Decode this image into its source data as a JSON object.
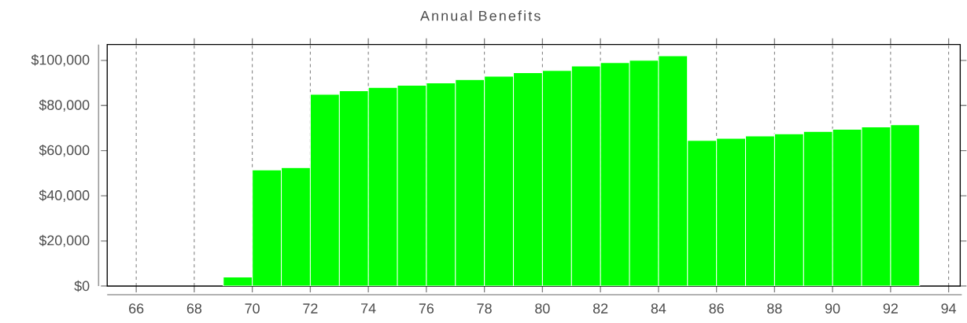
{
  "chart_data": {
    "type": "histogram",
    "title": "Annual Benefits",
    "bins": [
      69,
      70,
      71,
      72,
      73,
      74,
      75,
      76,
      77,
      78,
      79,
      80,
      81,
      82,
      83,
      84,
      85,
      86,
      87,
      88,
      89,
      90,
      91,
      92,
      93
    ],
    "values": [
      4000,
      51500,
      52500,
      85000,
      86500,
      88000,
      89000,
      90000,
      91500,
      93000,
      94500,
      95500,
      97500,
      99000,
      100000,
      102000,
      64500,
      65500,
      66500,
      67500,
      68500,
      69500,
      70500,
      71500
    ],
    "color": "#00ff00",
    "xlim": [
      65,
      94.4
    ],
    "xticks": [
      66,
      68,
      70,
      72,
      74,
      76,
      78,
      80,
      82,
      84,
      86,
      88,
      90,
      92,
      94
    ],
    "ylim": [
      0,
      107000
    ],
    "yticks": [
      {
        "value": 0,
        "label": "$0"
      },
      {
        "value": 20000,
        "label": "$20,000"
      },
      {
        "value": 40000,
        "label": "$40,000"
      },
      {
        "value": 60000,
        "label": "$60,000"
      },
      {
        "value": 80000,
        "label": "$80,000"
      },
      {
        "value": 100000,
        "label": "$100,000"
      }
    ],
    "grid": "x"
  }
}
